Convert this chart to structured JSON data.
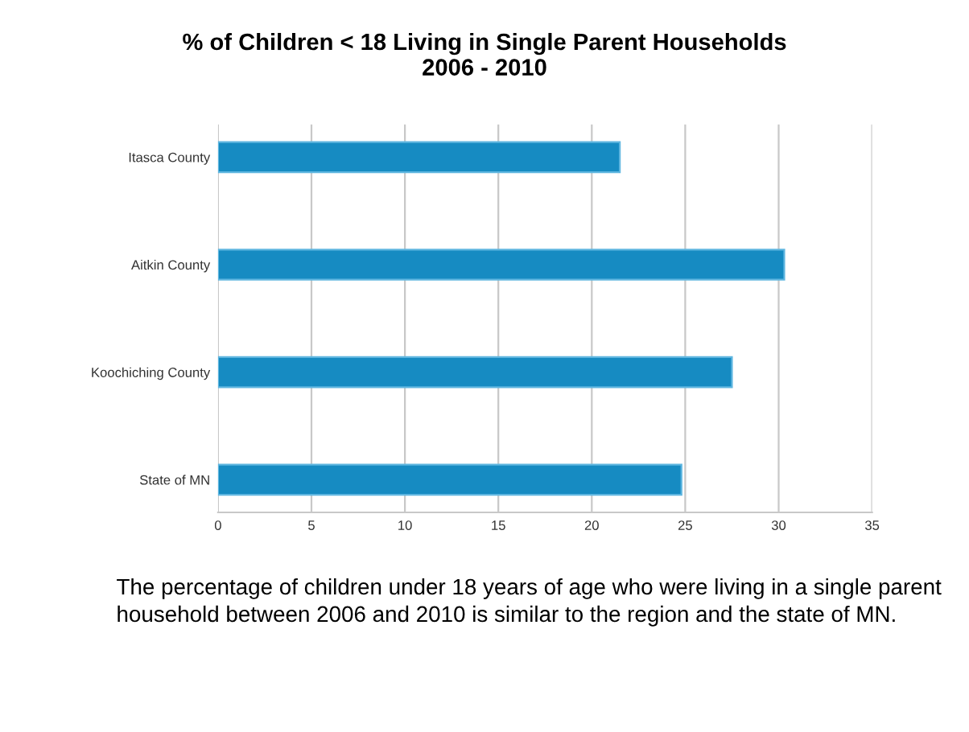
{
  "chart_data": {
    "type": "bar",
    "orientation": "horizontal",
    "title": "% of Children < 18 Living in Single Parent Households\n2006 - 2010",
    "categories": [
      "Itasca County",
      "Aitkin County",
      "Koochiching County",
      "State of MN"
    ],
    "values": [
      21.5,
      30.3,
      27.5,
      24.8
    ],
    "color": "#168bc2",
    "xlim": [
      0,
      35
    ],
    "xticks": [
      0,
      5,
      10,
      15,
      20,
      25,
      30,
      35
    ],
    "grid": "x",
    "annotations": [
      "The percentage of children under 18 years of age who were living in a single parent household between 2006 and 2010 is similar to the region and the state of MN."
    ]
  }
}
